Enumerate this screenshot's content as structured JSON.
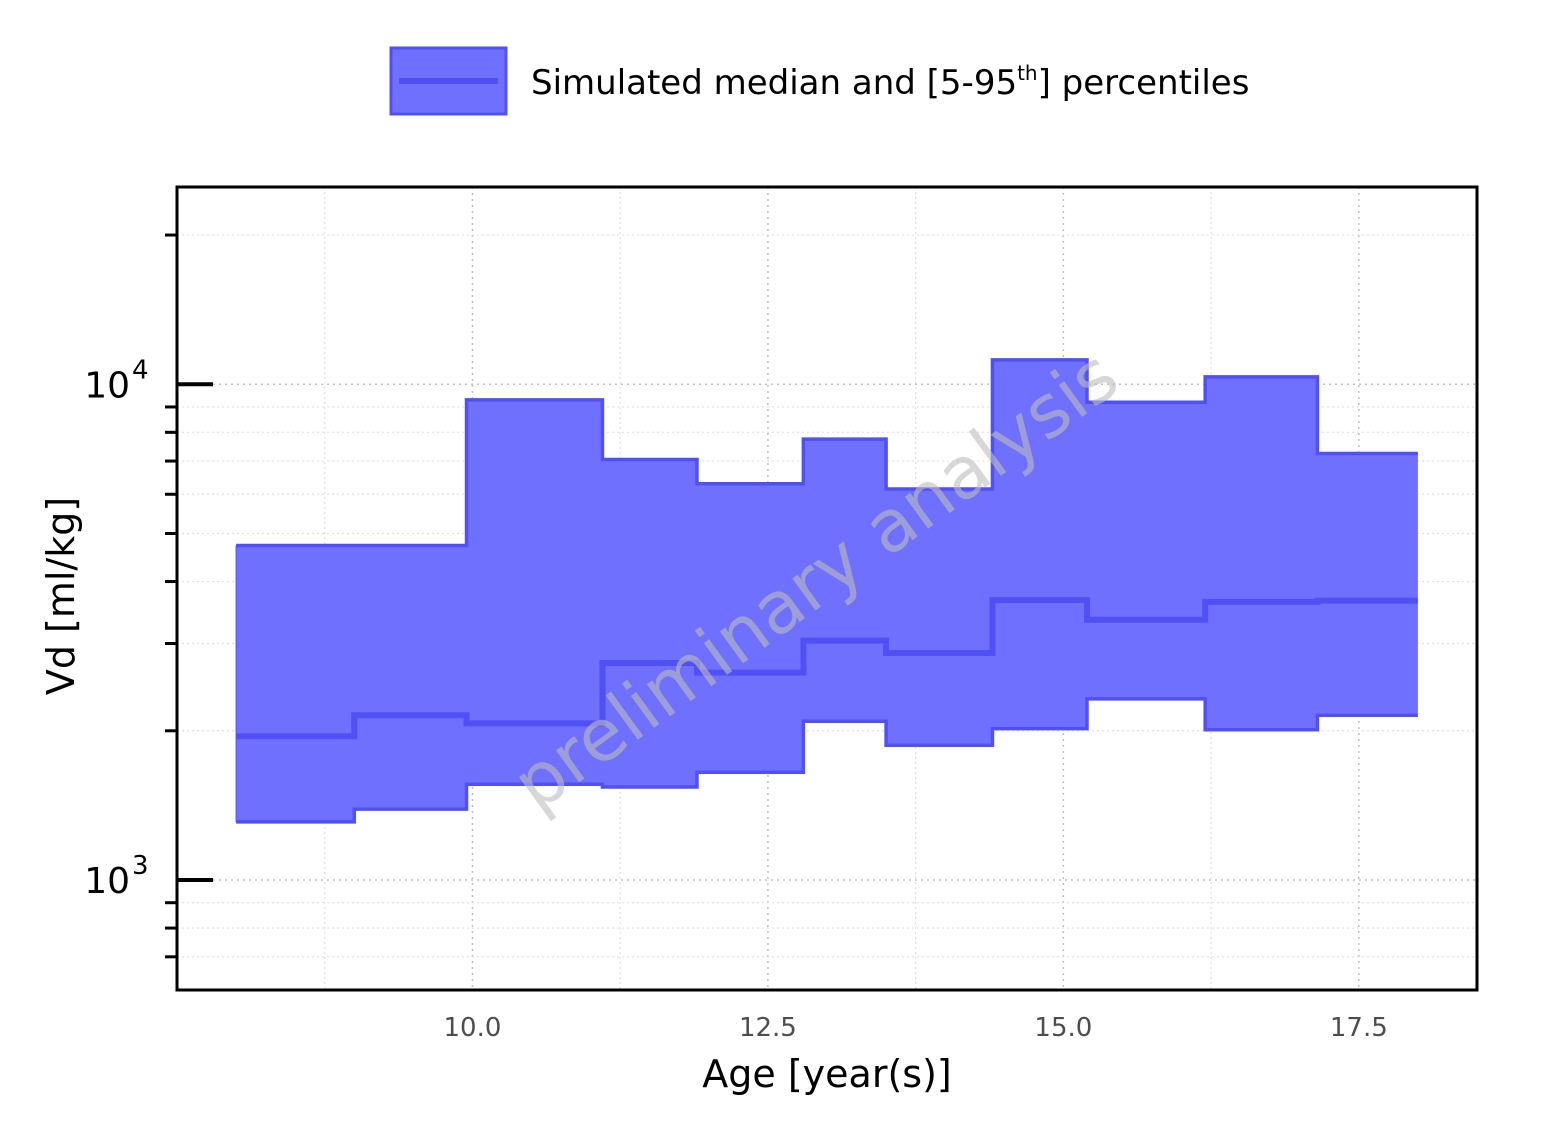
{
  "chart_data": {
    "type": "area",
    "step": "hv",
    "legend": {
      "position": "top",
      "label_prefix": "Simulated median and [5-95",
      "label_superscript": "th",
      "label_suffix": "] percentiles"
    },
    "xlabel": "Age [year(s)]",
    "ylabel": "Vd [ml/kg]",
    "xlim": [
      7.5,
      18.5
    ],
    "ylim": [
      600,
      25000
    ],
    "yscale": "log",
    "grid": true,
    "xticks": [
      10.0,
      12.5,
      15.0,
      17.5
    ],
    "xtick_labels": [
      "10.0",
      "12.5",
      "15.0",
      "17.5"
    ],
    "ytick_labels": [
      {
        "base": "10",
        "exp": "3",
        "value": 1000
      },
      {
        "base": "10",
        "exp": "4",
        "value": 10000
      }
    ],
    "watermark": "preliminary analysis",
    "series": [
      {
        "name": "Simulated median and [5-95th] percentiles",
        "color": "#5050f5",
        "fill": "#7070ff",
        "x": [
          8.0,
          9.0,
          9.95,
          11.1,
          11.9,
          12.8,
          13.5,
          14.4,
          15.2,
          16.2,
          17.15,
          18.0
        ],
        "median": [
          1950,
          2150,
          2070,
          2740,
          2620,
          3040,
          2870,
          3670,
          3350,
          3640,
          3660,
          3660
        ],
        "p5": [
          1310,
          1390,
          1560,
          1540,
          1650,
          2090,
          1870,
          2020,
          2320,
          2010,
          2150,
          2150
        ],
        "p95": [
          4730,
          4730,
          9300,
          7050,
          6300,
          7750,
          6150,
          11200,
          9200,
          10350,
          7250,
          7250
        ]
      }
    ]
  }
}
